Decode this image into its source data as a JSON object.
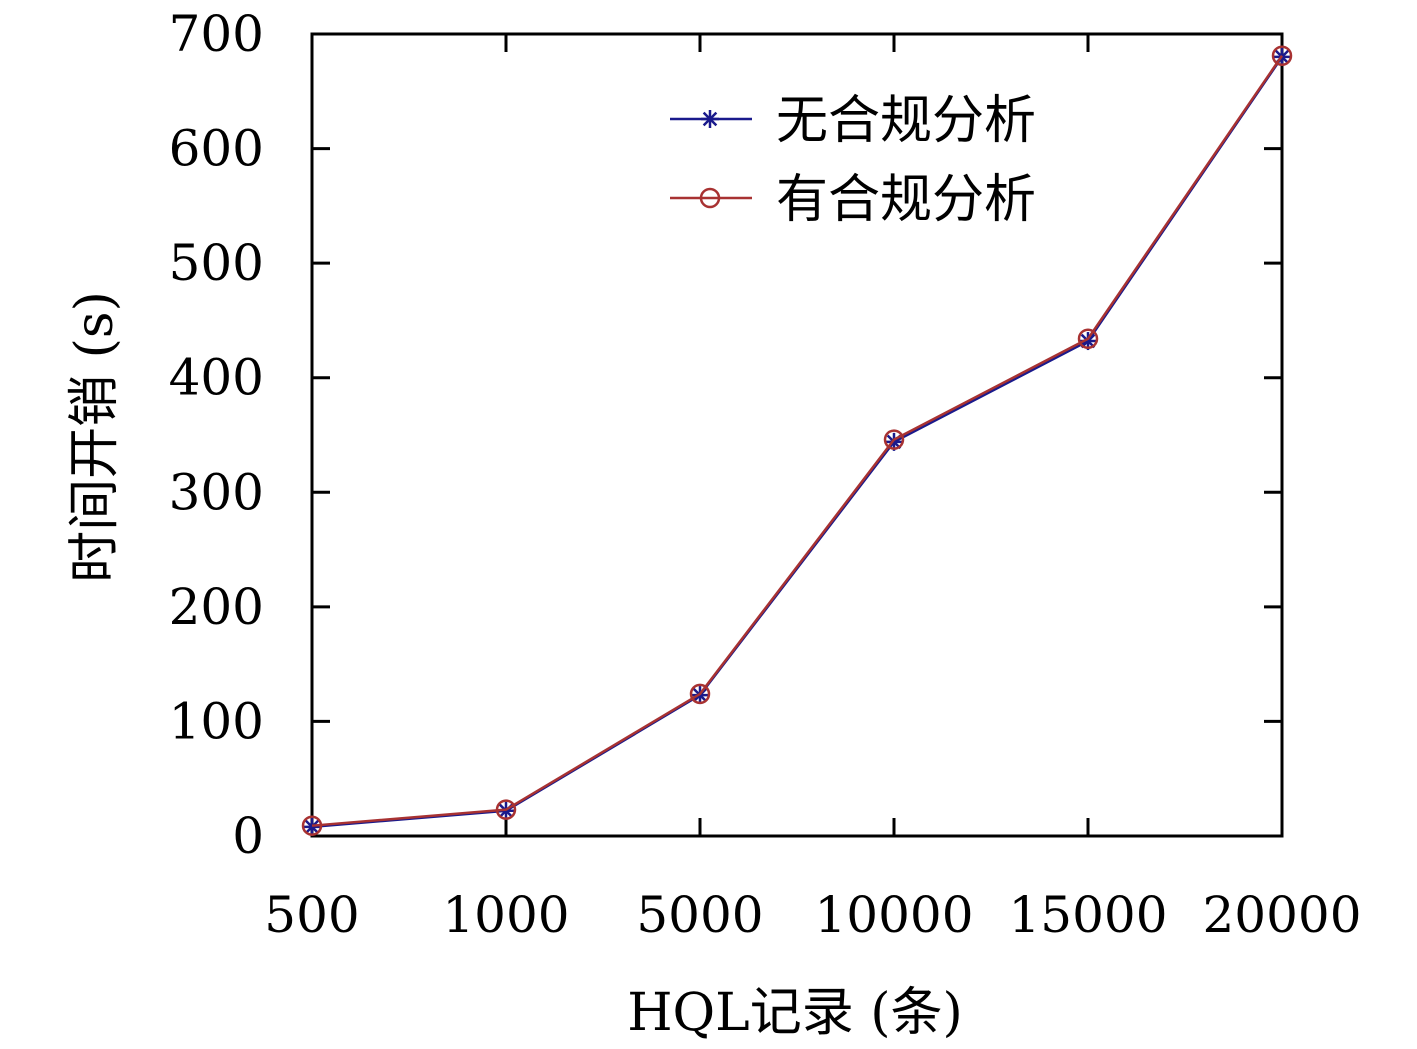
{
  "chart_data": {
    "type": "line",
    "title": "",
    "xlabel": "HQL记录 (条)",
    "ylabel": "时间开销 (s)",
    "categories": [
      "500",
      "1000",
      "5000",
      "10000",
      "15000",
      "20000"
    ],
    "ylim": [
      0,
      700
    ],
    "yticks": [
      0,
      100,
      200,
      300,
      400,
      500,
      600,
      700
    ],
    "grid": false,
    "legend_position": "top-right",
    "series": [
      {
        "name": "无合规分析",
        "marker": "star",
        "color": "#1a1a8c",
        "values": [
          8,
          22,
          123,
          344,
          432,
          680
        ]
      },
      {
        "name": "有合规分析",
        "marker": "circle",
        "color": "#a83232",
        "values": [
          9,
          23,
          124,
          346,
          434,
          681
        ]
      }
    ]
  }
}
